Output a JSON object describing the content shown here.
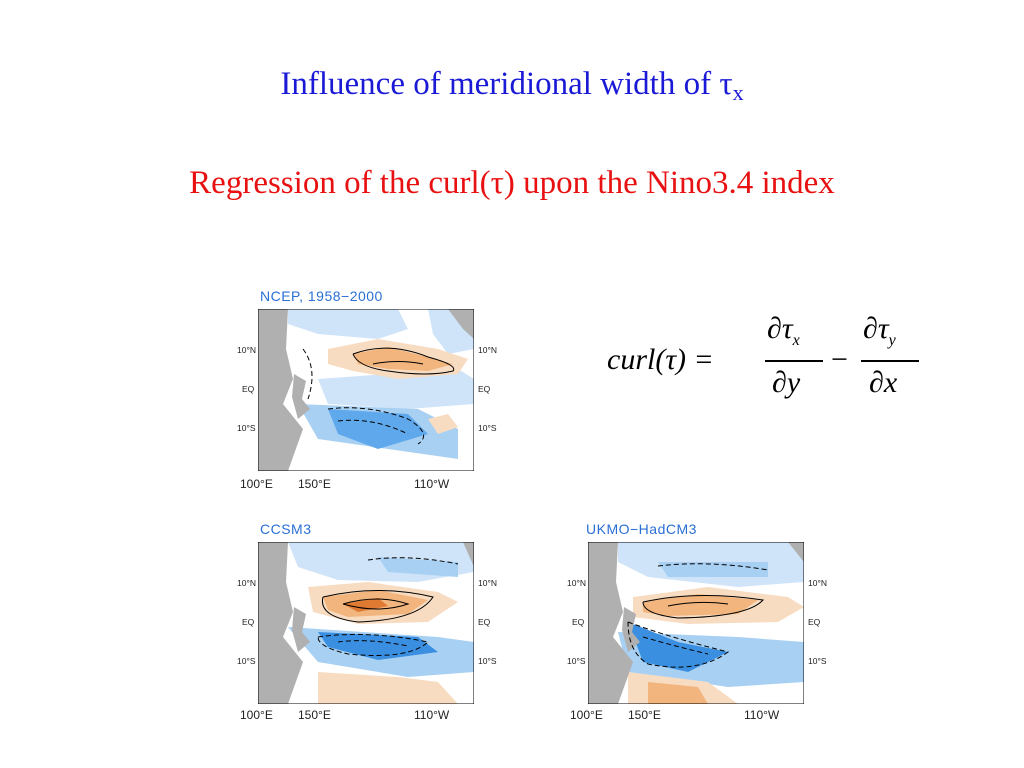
{
  "slide": {
    "title": "Influence of meridional width of τ",
    "title_subscript": "x",
    "subtitle": "Regression of the curl(τ) upon the Nino3.4 index"
  },
  "formula": {
    "lhs": "curl(τ) =",
    "num1": "∂τ",
    "num1_sub": "x",
    "den1": "∂y",
    "minus": "−",
    "num2": "∂τ",
    "num2_sub": "y",
    "den2": "∂x"
  },
  "panels": [
    {
      "label": "NCEP, 1958−2000",
      "lat_left": [
        "10°N",
        "EQ",
        "10°S"
      ],
      "lat_right": [
        "10°N",
        "EQ",
        "10°S"
      ],
      "lon": [
        "100°E",
        "150°E",
        "110°W"
      ]
    },
    {
      "label": "CCSM3",
      "lat_left": [
        "10°N",
        "EQ",
        "10°S"
      ],
      "lat_right": [
        "10°N",
        "EQ",
        "10°S"
      ],
      "lon": [
        "100°E",
        "150°E",
        "110°W"
      ]
    },
    {
      "label": "UKMO−HadCM3",
      "lat_left": [
        "10°N",
        "EQ",
        "10°S"
      ],
      "lat_right": [
        "10°N",
        "EQ",
        "10°S"
      ],
      "lon": [
        "100°E",
        "150°E",
        "110°W"
      ]
    }
  ],
  "colors": {
    "title": "#1a1ad6",
    "subtitle": "#e81010",
    "panel_label": "#2a6fd6",
    "positive": "#f0a060",
    "negative": "#3a8fe0",
    "land": "#b0b0b0"
  }
}
